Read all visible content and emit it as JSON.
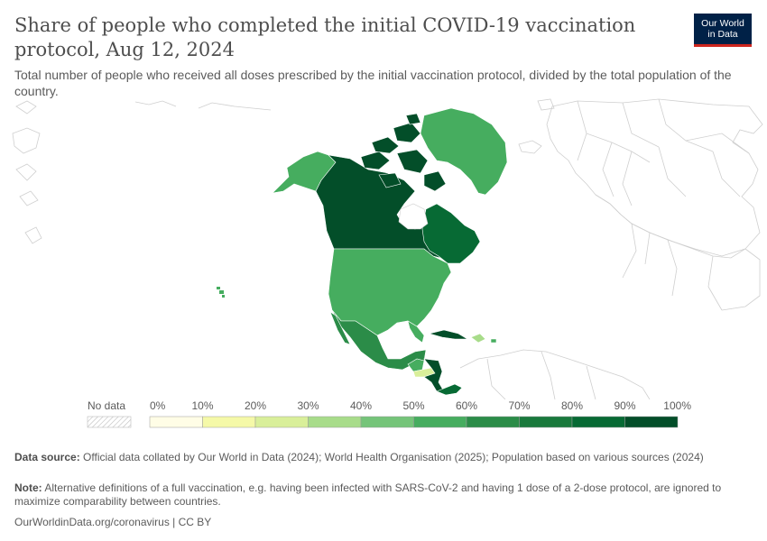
{
  "header": {
    "title": "Share of people who completed the initial COVID-19 vaccination protocol, Aug 12, 2024",
    "subtitle": "Total number of people who received all doses prescribed by the initial vaccination protocol, divided by the total population of the country.",
    "logo_line1": "Our World",
    "logo_line2": "in Data"
  },
  "legend": {
    "no_data_label": "No data",
    "ticks": [
      "0%",
      "10%",
      "20%",
      "30%",
      "40%",
      "50%",
      "60%",
      "70%",
      "80%",
      "90%",
      "100%"
    ],
    "colors": [
      "#fffde6",
      "#f5f9a8",
      "#d9ef9a",
      "#a8dc8a",
      "#75c479",
      "#46ad5f",
      "#2b8c48",
      "#19793c",
      "#076a34",
      "#034e29"
    ],
    "no_data_color": "#e0e0e0"
  },
  "map": {
    "region": "North America",
    "fills": {
      "canada": "#034e29",
      "quebec_atlantic": "#076a34",
      "arctic_islands": "#034e29",
      "alaska": "#46ad5f",
      "greenland": "#46ad5f",
      "usa": "#46ad5f",
      "mexico": "#2b8c48",
      "cuba": "#034e29",
      "hispaniola": "#a8dc8a",
      "guatemala": "#46ad5f",
      "honduras": "#d9ef9a",
      "nicaragua": "#034e29",
      "costa_rica_panama": "#076a34",
      "hawaii": "#46ad5f",
      "outline": "#cfcfcf"
    }
  },
  "footer": {
    "source_label": "Data source:",
    "source_text": "Official data collated by Our World in Data (2024); World Health Organisation (2025); Population based on various sources (2024)",
    "note_label": "Note:",
    "note_text": "Alternative definitions of a full vaccination, e.g. having been infected with SARS-CoV-2 and having 1 dose of a 2-dose protocol, are ignored to maximize comparability between countries.",
    "url": "OurWorldinData.org/coronavirus | CC BY"
  }
}
